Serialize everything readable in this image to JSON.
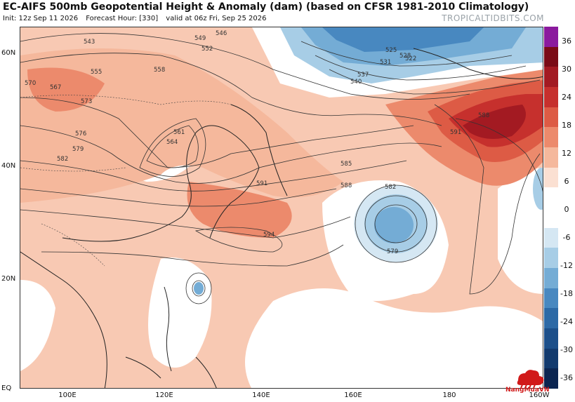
{
  "header": {
    "title": "EC-AIFS 500mb Geopotential Height & Anomaly (dam) (based on CFSR 1981-2010 Climatology)",
    "init": "Init: 12z Sep 11 2026",
    "forecast_hour": "Forecast Hour: [330]",
    "valid": "valid at 06z Fri, Sep 25 2026",
    "watermark": "TROPICALTIDBITS.COM"
  },
  "axes": {
    "lat_labels": [
      "60N",
      "40N",
      "20N",
      "EQ"
    ],
    "lon_labels": [
      "100E",
      "120E",
      "140E",
      "160E",
      "180",
      "160W"
    ]
  },
  "colorbar": {
    "labels": [
      "36",
      "30",
      "24",
      "18",
      "12",
      "6",
      "0",
      "-6",
      "-12",
      "-18",
      "-24",
      "-30",
      "-36"
    ],
    "colors": [
      "#8b1a9e",
      "#7a0b16",
      "#a31a22",
      "#c6302d",
      "#dd5b45",
      "#ec8a6c",
      "#f5b89c",
      "#fbe0d2",
      "#ffffff",
      "#ffffff",
      "#d5e7f3",
      "#a7cde6",
      "#74acd5",
      "#4888c0",
      "#2c69a6",
      "#1c4f8a",
      "#123a6e",
      "#0b2551"
    ]
  },
  "contour_labels": [
    "543",
    "549",
    "546",
    "552",
    "555",
    "558",
    "570",
    "567",
    "573",
    "576",
    "579",
    "582",
    "585",
    "588",
    "591",
    "594",
    "561",
    "564",
    "522",
    "525",
    "528",
    "531",
    "537",
    "540",
    "588",
    "591",
    "582",
    "579"
  ],
  "logo": {
    "text": "NangMuaVN"
  }
}
